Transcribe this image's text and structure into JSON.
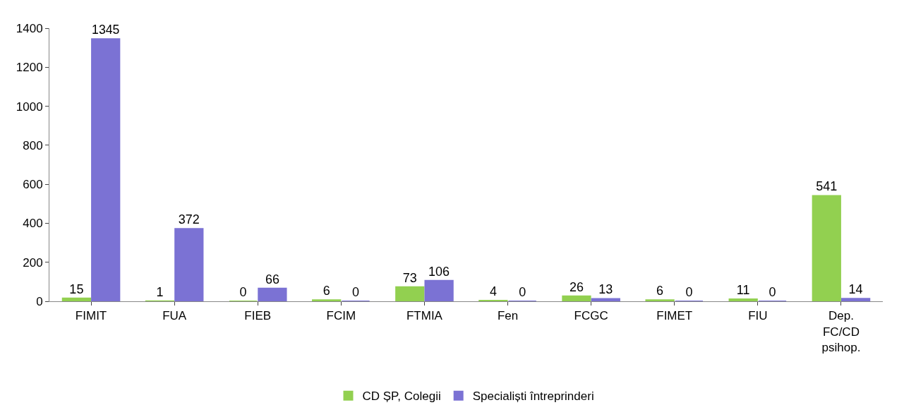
{
  "chart_data": {
    "type": "bar",
    "categories": [
      "FIMIT",
      "FUA",
      "FIEB",
      "FCIM",
      "FTMIA",
      "Fen",
      "FCGC",
      "FIMET",
      "FIU",
      "Dep. FC/CD psihop."
    ],
    "series": [
      {
        "name": "CD ȘP, Colegii",
        "color": "#92d050",
        "values": [
          15,
          1,
          0,
          6,
          73,
          4,
          26,
          6,
          11,
          541
        ]
      },
      {
        "name": "Specialiști întreprinderi",
        "color": "#7b72d4",
        "values": [
          1345,
          372,
          66,
          0,
          106,
          0,
          13,
          0,
          0,
          14
        ]
      }
    ],
    "ylim": [
      0,
      1400
    ],
    "yticks": [
      0,
      200,
      400,
      600,
      800,
      1000,
      1200,
      1400
    ],
    "legend": "bottom",
    "data_labels": true
  }
}
